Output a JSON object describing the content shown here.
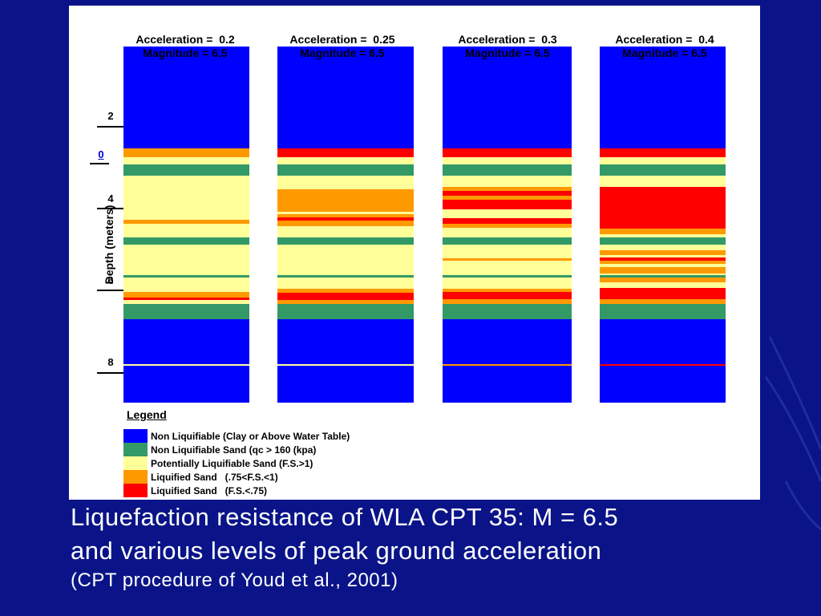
{
  "columns": [
    {
      "title_line1": "Acceleration =  0.2",
      "title_line2": "Magnitude = 6.5"
    },
    {
      "title_line1": "Acceleration =  0.25",
      "title_line2": "Magnitude = 6.5"
    },
    {
      "title_line1": "Acceleration =  0.3",
      "title_line2": "Magnitude = 6.5"
    },
    {
      "title_line1": "Acceleration =  0.4",
      "title_line2": "Magnitude = 6.5"
    }
  ],
  "axis": {
    "label": "Depth (meters)",
    "ticks": [
      "2",
      "0",
      "4",
      "6",
      "8"
    ]
  },
  "legend": {
    "title": "Legend",
    "items": [
      {
        "label": "Non Liquifiable (Clay or Above Water Table)",
        "color": "#0000ff"
      },
      {
        "label": "Non Liquifiable Sand (qc > 160 (kpa)",
        "color": "#339966"
      },
      {
        "label": "Potentially Liquifiable Sand (F.S.>1)",
        "color": "#ffff99"
      },
      {
        "label": "Liquified Sand   (.75<F.S.<1)",
        "color": "#ff9900"
      },
      {
        "label": "Liquified Sand   (F.S.<.75)",
        "color": "#ff0000"
      }
    ]
  },
  "caption": {
    "line1": "Liquefaction resistance of WLA CPT 35: M = 6.5",
    "line2": "and various levels of peak ground acceleration",
    "line3": "(CPT procedure of Youd et al., 2001)"
  },
  "colors": {
    "slide_background": "#0a1488",
    "panel_background": "#ffffff"
  }
}
